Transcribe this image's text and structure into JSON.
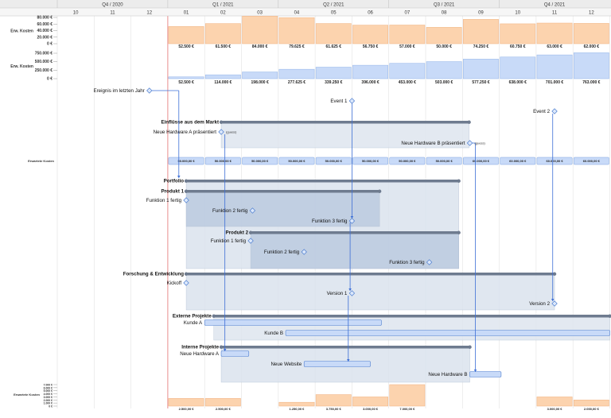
{
  "timeline": {
    "quarters": [
      {
        "label": "Q4 / 2020",
        "months": [
          "10",
          "11",
          "12"
        ]
      },
      {
        "label": "Q1 / 2021",
        "months": [
          "01",
          "02",
          "03"
        ]
      },
      {
        "label": "Q2 / 2021",
        "months": [
          "04",
          "05",
          "06"
        ]
      },
      {
        "label": "Q3 / 2021",
        "months": [
          "07",
          "08",
          "09"
        ]
      },
      {
        "label": "Q4 / 2021",
        "months": [
          "10",
          "11",
          "12"
        ]
      }
    ]
  },
  "chart_data": [
    {
      "type": "bar",
      "ylabel": "Erw. Kosten",
      "ylim": [
        0,
        80000
      ],
      "ticks": [
        "80.000 €",
        "60.000 €",
        "40.000 €",
        "20.000 €",
        "0 €"
      ],
      "categories": [
        "01",
        "02",
        "03",
        "04",
        "05",
        "06",
        "07",
        "08",
        "09",
        "10",
        "11",
        "12"
      ],
      "values": [
        52500,
        61500,
        84000,
        79625,
        61625,
        56750,
        57000,
        50000,
        74250,
        60750,
        63000,
        62000
      ],
      "labels": [
        "52.500 €",
        "61.500 €",
        "84.000 €",
        "79.625 €",
        "61.625 €",
        "56.750 €",
        "57.000 €",
        "50.000 €",
        "74.250 €",
        "60.750 €",
        "63.000 €",
        "62.000 €"
      ],
      "color": "#fcd3ae"
    },
    {
      "type": "bar",
      "ylabel": "Erw. Kosten",
      "ylim": [
        0,
        750000
      ],
      "ticks": [
        "750.000 €",
        "500.000 €",
        "250.000 €",
        "0 €"
      ],
      "categories": [
        "01",
        "02",
        "03",
        "04",
        "05",
        "06",
        "07",
        "08",
        "09",
        "10",
        "11",
        "12"
      ],
      "values": [
        52500,
        114000,
        198000,
        277625,
        339250,
        396000,
        453000,
        503000,
        577250,
        638000,
        701000,
        763000
      ],
      "labels": [
        "52.500 €",
        "114.000 €",
        "198.000 €",
        "277.625 €",
        "339.250 €",
        "396.000 €",
        "453.000 €",
        "503.000 €",
        "577.250 €",
        "638.000 €",
        "701.000 €",
        "763.000 €"
      ],
      "color": "#c8daf8"
    },
    {
      "type": "bar",
      "ylabel": "Erwartete Kosten",
      "ylim": [
        0,
        7000
      ],
      "ticks": [
        "7.000 €",
        "6.000 €",
        "5.000 €",
        "4.000 €",
        "3.000 €",
        "2.000 €",
        "1.000 €",
        "0 €"
      ],
      "categories": [
        "01",
        "02",
        "03",
        "04",
        "05",
        "06",
        "07",
        "08",
        "09",
        "10",
        "11",
        "12"
      ],
      "values": [
        2500,
        2500,
        0,
        1250,
        3750,
        3000,
        7000,
        0,
        0,
        0,
        3000,
        2000
      ],
      "labels": [
        "2.500,00 €",
        "2.500,00 €",
        "",
        "1.250,00 €",
        "3.750,00 €",
        "3.000,00 €",
        "7.000,00 €",
        "",
        "",
        "",
        "3.000,00 €",
        "2.000,00 €"
      ],
      "color": "#fcd3ae"
    }
  ],
  "cost_row": {
    "label": "Erwartete Kosten",
    "values": [
      "50.000,00 €",
      "50.000,00 €",
      "50.000,00 €",
      "50.000,00 €",
      "50.000,00 €",
      "50.000,00 €",
      "50.000,00 €",
      "50.000,00 €",
      "60.000,00 €",
      "60.000,00 €",
      "60.000,00 €",
      "60.000,00 €"
    ]
  },
  "milestones": [
    {
      "id": "last-year",
      "label": "Ereignis im letzten Jahr"
    },
    {
      "id": "event1",
      "label": "Event 1"
    },
    {
      "id": "event2",
      "label": "Event 2"
    },
    {
      "id": "hwA",
      "label": "Neue Hardware A präsentiert",
      "note": "(guess)"
    },
    {
      "id": "hwB",
      "label": "Neue Hardware B präsentiert",
      "note": "(guess)"
    },
    {
      "id": "p1f1",
      "label": "Funktion 1 fertig"
    },
    {
      "id": "p1f2",
      "label": "Funktion 2 fertig"
    },
    {
      "id": "p1f3",
      "label": "Funktion 3 fertig"
    },
    {
      "id": "p2f1",
      "label": "Funktion 1 fertig"
    },
    {
      "id": "p2f2",
      "label": "Funktion 2 fertig"
    },
    {
      "id": "p2f3",
      "label": "Funktion 3 fertig"
    },
    {
      "id": "kickoff",
      "label": "Kickoff"
    },
    {
      "id": "v1",
      "label": "Version 1"
    },
    {
      "id": "v2",
      "label": "Version 2"
    }
  ],
  "groups": [
    {
      "id": "markt",
      "label": "Einflüsse aus dem Markt"
    },
    {
      "id": "portfolio",
      "label": "Portfolio"
    },
    {
      "id": "p1",
      "label": "Produkt 1"
    },
    {
      "id": "p2",
      "label": "Produkt 2"
    },
    {
      "id": "fue",
      "label": "Forschung & Entwicklung"
    },
    {
      "id": "ext",
      "label": "Externe Projekte"
    },
    {
      "id": "int",
      "label": "Interne Projekte"
    }
  ],
  "tasks": [
    {
      "id": "kundeA",
      "label": "Kunde A"
    },
    {
      "id": "kundeB",
      "label": "Kunde B"
    },
    {
      "id": "nhwA",
      "label": "Neue Hardware A"
    },
    {
      "id": "web",
      "label": "Neue Website"
    },
    {
      "id": "nhwB",
      "label": "Neue Hardware B"
    }
  ]
}
